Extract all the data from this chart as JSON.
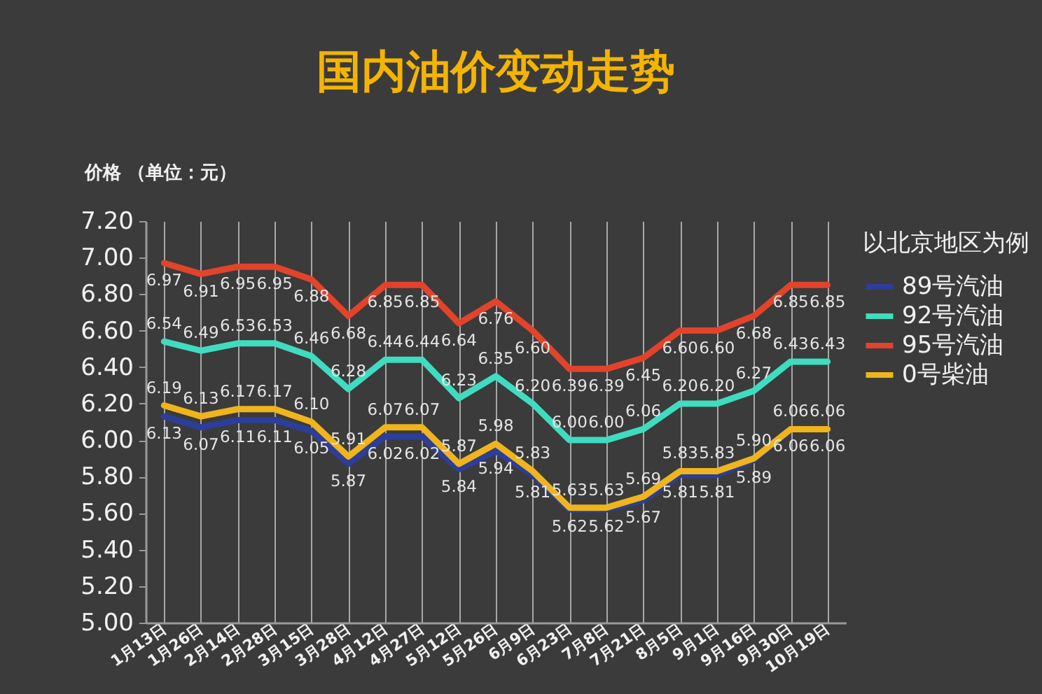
{
  "chart_data": {
    "type": "line",
    "title": "国内油价变动走势",
    "ylabel": "价格 （单位：元）",
    "legend_title": "以北京地区为例",
    "legend": "right",
    "grid": "x",
    "line_style": "solid",
    "categories": [
      "1月13日",
      "1月26日",
      "2月14日",
      "2月28日",
      "3月15日",
      "3月28日",
      "4月12日",
      "4月27日",
      "5月12日",
      "5月26日",
      "6月9日",
      "6月23日",
      "7月8日",
      "7月21日",
      "8月5日",
      "9月1日",
      "9月16日",
      "9月30日",
      "10月19日"
    ],
    "ylim": [
      5.0,
      7.2
    ],
    "yticks": [
      {
        "value": 5.0,
        "label": "5.00"
      },
      {
        "value": 5.2,
        "label": "5.20"
      },
      {
        "value": 5.4,
        "label": "5.40"
      },
      {
        "value": 5.6,
        "label": "5.60"
      },
      {
        "value": 5.8,
        "label": "5.80"
      },
      {
        "value": 6.0,
        "label": "6.00"
      },
      {
        "value": 6.2,
        "label": "6.20"
      },
      {
        "value": 6.4,
        "label": "6.40"
      },
      {
        "value": 6.6,
        "label": "6.60"
      },
      {
        "value": 6.8,
        "label": "6.80"
      },
      {
        "value": 7.0,
        "label": "7.00"
      },
      {
        "value": 7.2,
        "label": "7.20"
      }
    ],
    "series": [
      {
        "name": "89号汽油",
        "color": "#2c3e9a",
        "values": [
          6.13,
          6.07,
          6.11,
          6.11,
          6.05,
          5.87,
          6.02,
          6.02,
          5.84,
          5.94,
          5.81,
          5.62,
          5.62,
          5.67,
          5.81,
          5.81,
          5.89,
          6.06,
          6.06
        ],
        "value_labels": [
          "6.13",
          "6.07",
          "6.11",
          "6.11",
          "6.05",
          "5.87",
          "6.02",
          "6.02",
          "5.84",
          "5.94",
          "5.81",
          "5.62",
          "5.62",
          "5.67",
          "5.81",
          "5.81",
          "5.89",
          "6.06",
          "6.06"
        ]
      },
      {
        "name": "92号汽油",
        "color": "#3fdcc0",
        "values": [
          6.54,
          6.49,
          6.53,
          6.53,
          6.46,
          6.28,
          6.44,
          6.44,
          6.23,
          6.35,
          6.2,
          6.0,
          6.0,
          6.06,
          6.2,
          6.2,
          6.27,
          6.43,
          6.43
        ],
        "value_labels": [
          "6.54",
          "6.49",
          "6.53",
          "6.53",
          "6.46",
          "6.28",
          "6.44",
          "6.44",
          "6.23",
          "6.35",
          "6.20",
          "6.00",
          "6.00",
          "6.06",
          "6.20",
          "6.20",
          "6.27",
          "6.43",
          "6.43"
        ]
      },
      {
        "name": "95号汽油",
        "color": "#e2432b",
        "values": [
          6.97,
          6.91,
          6.95,
          6.95,
          6.88,
          6.68,
          6.85,
          6.85,
          6.64,
          6.76,
          6.6,
          6.39,
          6.39,
          6.45,
          6.6,
          6.6,
          6.68,
          6.85,
          6.85
        ],
        "value_labels": [
          "6.97",
          "6.91",
          "6.95",
          "6.95",
          "6.88",
          "6.68",
          "6.85",
          "6.85",
          "6.64",
          "6.76",
          "6.60",
          "6.39",
          "6.39",
          "6.45",
          "6.60",
          "6.60",
          "6.68",
          "6.85",
          "6.85"
        ]
      },
      {
        "name": "0号柴油",
        "color": "#f0b41c",
        "values": [
          6.19,
          6.13,
          6.17,
          6.17,
          6.1,
          5.91,
          6.07,
          6.07,
          5.87,
          5.98,
          5.83,
          5.63,
          5.63,
          5.69,
          5.83,
          5.83,
          5.9,
          6.06,
          6.06
        ],
        "value_labels": [
          "6.19",
          "6.13",
          "6.17",
          "6.17",
          "6.10",
          "5.91",
          "6.07",
          "6.07",
          "5.87",
          "5.98",
          "5.83",
          "5.63",
          "5.63",
          "5.69",
          "5.83",
          "5.83",
          "5.90",
          "6.06",
          "6.06"
        ]
      }
    ]
  }
}
